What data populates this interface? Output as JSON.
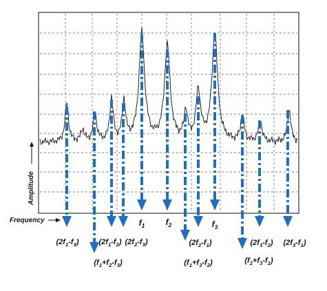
{
  "axis_labels": {
    "y": "Amplitude",
    "x": "Frequency"
  },
  "colors": {
    "arrow": "#1f6fbf",
    "trace": "#222222",
    "grid": "#555555",
    "frame": "#333333"
  },
  "fundamentals": [
    {
      "base": "f",
      "sub": "1"
    },
    {
      "base": "f",
      "sub": "2"
    },
    {
      "base": "f",
      "sub": "3"
    }
  ],
  "products": [
    {
      "label": [
        [
          "(2f",
          ""
        ],
        [
          "1",
          "sub"
        ],
        [
          "-f",
          ""
        ],
        [
          "3",
          "sub"
        ],
        [
          ")",
          ""
        ]
      ]
    },
    {
      "label": [
        [
          "(f",
          ""
        ],
        [
          "1",
          "sub"
        ],
        [
          "+f",
          ""
        ],
        [
          "2",
          "sub"
        ],
        [
          "-f",
          ""
        ],
        [
          "3",
          "sub"
        ],
        [
          ")",
          ""
        ]
      ]
    },
    {
      "label": [
        [
          "(2f",
          ""
        ],
        [
          "1",
          "sub"
        ],
        [
          "-f",
          ""
        ],
        [
          "2",
          "sub"
        ],
        [
          ")",
          ""
        ]
      ]
    },
    {
      "label": [
        [
          "(2f",
          ""
        ],
        [
          "2",
          "sub"
        ],
        [
          "-f",
          ""
        ],
        [
          "3",
          "sub"
        ],
        [
          ")",
          ""
        ]
      ]
    },
    {
      "label": [
        [
          "(2f",
          ""
        ],
        [
          "2",
          "sub"
        ],
        [
          "-f",
          ""
        ],
        [
          "1",
          "sub"
        ],
        [
          ")",
          ""
        ]
      ]
    },
    {
      "label": [
        [
          "(f",
          ""
        ],
        [
          "1",
          "sub"
        ],
        [
          "+f",
          ""
        ],
        [
          "3",
          "sub"
        ],
        [
          "-f",
          ""
        ],
        [
          "2",
          "sub"
        ],
        [
          ")",
          ""
        ]
      ]
    },
    {
      "label": [
        [
          "(f",
          ""
        ],
        [
          "2",
          "sub"
        ],
        [
          "+f",
          ""
        ],
        [
          "3",
          "sub"
        ],
        [
          "-f",
          ""
        ],
        [
          "1",
          "sub"
        ],
        [
          ")",
          ""
        ]
      ]
    },
    {
      "label": [
        [
          "(2f",
          ""
        ],
        [
          "3",
          "sub"
        ],
        [
          "-f",
          ""
        ],
        [
          "2",
          "sub"
        ],
        [
          ")",
          ""
        ]
      ]
    },
    {
      "label": [
        [
          "(2f",
          ""
        ],
        [
          "3",
          "sub"
        ],
        [
          "-f",
          ""
        ],
        [
          "1",
          "sub"
        ],
        [
          ")",
          ""
        ]
      ]
    }
  ]
}
